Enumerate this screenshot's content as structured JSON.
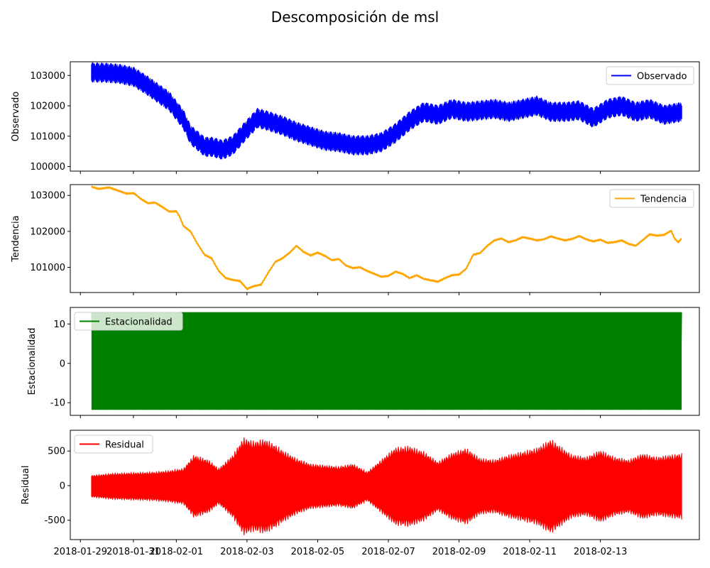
{
  "figure": {
    "title": "Descomposición de msl"
  },
  "x_axis": {
    "tick_labels": [
      "2018-01-29",
      "2018-01-31",
      "2018-02-01",
      "2018-02-03",
      "2018-02-05",
      "2018-02-07",
      "2018-02-09",
      "2018-02-11",
      "2018-02-13"
    ],
    "tick_days": [
      -2.714,
      -1.214,
      0,
      2,
      4,
      6,
      8,
      10,
      12
    ],
    "range_days": [
      -3.0,
      14.8
    ]
  },
  "chart_data": [
    {
      "type": "line",
      "id": "observado",
      "ylabel": "Observado",
      "legend": "Observado",
      "legend_loc": "upper right",
      "color": "#0000ff",
      "ylim": [
        99850,
        103450
      ],
      "yticks": [
        100000,
        101000,
        102000,
        103000
      ],
      "band_amplitude": 320,
      "x_start": -2.4,
      "x_end": 14.3,
      "center_points": [
        [
          -2.4,
          3100
        ],
        [
          -2.0,
          3090
        ],
        [
          -1.6,
          3050
        ],
        [
          -1.2,
          2950
        ],
        [
          -0.8,
          2650
        ],
        [
          -0.5,
          2400
        ],
        [
          -0.2,
          2150
        ],
        [
          0.2,
          1550
        ],
        [
          0.4,
          1050
        ],
        [
          0.8,
          650
        ],
        [
          1.0,
          650
        ],
        [
          1.3,
          550
        ],
        [
          1.6,
          700
        ],
        [
          1.9,
          1100
        ],
        [
          2.1,
          1350
        ],
        [
          2.3,
          1600
        ],
        [
          2.6,
          1500
        ],
        [
          3.0,
          1350
        ],
        [
          3.4,
          1150
        ],
        [
          3.8,
          1000
        ],
        [
          4.2,
          850
        ],
        [
          4.6,
          800
        ],
        [
          5.0,
          700
        ],
        [
          5.4,
          700
        ],
        [
          5.8,
          800
        ],
        [
          6.2,
          1100
        ],
        [
          6.6,
          1500
        ],
        [
          7.0,
          1800
        ],
        [
          7.4,
          1700
        ],
        [
          7.8,
          1900
        ],
        [
          8.2,
          1800
        ],
        [
          8.6,
          1850
        ],
        [
          9.0,
          1900
        ],
        [
          9.4,
          1800
        ],
        [
          9.8,
          1900
        ],
        [
          10.2,
          2000
        ],
        [
          10.6,
          1800
        ],
        [
          11.0,
          1800
        ],
        [
          11.4,
          1850
        ],
        [
          11.8,
          1600
        ],
        [
          12.2,
          1900
        ],
        [
          12.6,
          2000
        ],
        [
          13.0,
          1800
        ],
        [
          13.4,
          1900
        ],
        [
          13.8,
          1700
        ],
        [
          14.3,
          1800
        ]
      ],
      "center_offset": 100000
    },
    {
      "type": "line",
      "id": "tendencia",
      "ylabel": "Tendencia",
      "legend": "Tendencia",
      "legend_loc": "upper right",
      "color": "#ffa500",
      "ylim": [
        100300,
        103300
      ],
      "yticks": [
        101000,
        102000,
        103000
      ],
      "band_amplitude": 0,
      "x_start": -2.4,
      "x_end": 14.3,
      "center_points": [
        [
          -2.4,
          3240
        ],
        [
          -2.2,
          3180
        ],
        [
          -1.9,
          3220
        ],
        [
          -1.7,
          3150
        ],
        [
          -1.4,
          3050
        ],
        [
          -1.2,
          3060
        ],
        [
          -1.0,
          2900
        ],
        [
          -0.8,
          2780
        ],
        [
          -0.6,
          2800
        ],
        [
          -0.4,
          2680
        ],
        [
          -0.2,
          2550
        ],
        [
          0.0,
          2560
        ],
        [
          0.1,
          2400
        ],
        [
          0.2,
          2150
        ],
        [
          0.4,
          2000
        ],
        [
          0.6,
          1650
        ],
        [
          0.8,
          1350
        ],
        [
          1.0,
          1250
        ],
        [
          1.2,
          900
        ],
        [
          1.4,
          700
        ],
        [
          1.6,
          650
        ],
        [
          1.8,
          620
        ],
        [
          2.0,
          400
        ],
        [
          2.2,
          480
        ],
        [
          2.4,
          520
        ],
        [
          2.6,
          850
        ],
        [
          2.8,
          1150
        ],
        [
          3.0,
          1250
        ],
        [
          3.2,
          1400
        ],
        [
          3.4,
          1600
        ],
        [
          3.6,
          1430
        ],
        [
          3.8,
          1330
        ],
        [
          4.0,
          1410
        ],
        [
          4.2,
          1320
        ],
        [
          4.4,
          1200
        ],
        [
          4.6,
          1230
        ],
        [
          4.8,
          1050
        ],
        [
          5.0,
          980
        ],
        [
          5.2,
          1000
        ],
        [
          5.4,
          900
        ],
        [
          5.6,
          820
        ],
        [
          5.8,
          740
        ],
        [
          6.0,
          760
        ],
        [
          6.2,
          880
        ],
        [
          6.4,
          820
        ],
        [
          6.6,
          700
        ],
        [
          6.8,
          780
        ],
        [
          7.0,
          680
        ],
        [
          7.2,
          640
        ],
        [
          7.4,
          600
        ],
        [
          7.6,
          700
        ],
        [
          7.8,
          780
        ],
        [
          8.0,
          800
        ],
        [
          8.2,
          960
        ],
        [
          8.4,
          1350
        ],
        [
          8.6,
          1400
        ],
        [
          8.8,
          1600
        ],
        [
          9.0,
          1750
        ],
        [
          9.2,
          1800
        ],
        [
          9.4,
          1700
        ],
        [
          9.6,
          1750
        ],
        [
          9.8,
          1840
        ],
        [
          10.0,
          1800
        ],
        [
          10.2,
          1750
        ],
        [
          10.4,
          1780
        ],
        [
          10.6,
          1860
        ],
        [
          10.8,
          1800
        ],
        [
          11.0,
          1750
        ],
        [
          11.2,
          1790
        ],
        [
          11.4,
          1870
        ],
        [
          11.6,
          1780
        ],
        [
          11.8,
          1720
        ],
        [
          12.0,
          1770
        ],
        [
          12.2,
          1680
        ],
        [
          12.4,
          1700
        ],
        [
          12.6,
          1750
        ],
        [
          12.8,
          1650
        ],
        [
          13.0,
          1600
        ],
        [
          13.2,
          1760
        ],
        [
          13.4,
          1920
        ],
        [
          13.6,
          1880
        ],
        [
          13.8,
          1900
        ],
        [
          14.0,
          2020
        ],
        [
          14.1,
          1800
        ],
        [
          14.2,
          1700
        ],
        [
          14.3,
          1800
        ]
      ],
      "center_offset": 100000
    },
    {
      "type": "line",
      "id": "estacionalidad",
      "ylabel": "Estacionalidad",
      "legend": "Estacionalidad",
      "legend_loc": "upper left",
      "color": "#008000",
      "ylim": [
        -13.2,
        14.2
      ],
      "yticks": [
        -10,
        0,
        10
      ],
      "band_amplitude": 0,
      "x_start": -2.4,
      "x_end": 14.3,
      "seasonal_max": 13,
      "seasonal_min": -11.8,
      "seasonal_cycles": 167
    },
    {
      "type": "line",
      "id": "residual",
      "ylabel": "Residual",
      "legend": "Residual",
      "legend_loc": "upper left",
      "color": "#ff0000",
      "ylim": [
        -780,
        800
      ],
      "yticks": [
        -500,
        0,
        500
      ],
      "x_start": -2.4,
      "x_end": 14.3,
      "envelope_points": [
        [
          -2.4,
          150
        ],
        [
          -1.8,
          180
        ],
        [
          -1.2,
          190
        ],
        [
          -0.6,
          200
        ],
        [
          -0.2,
          220
        ],
        [
          0.2,
          250
        ],
        [
          0.5,
          450
        ],
        [
          0.9,
          380
        ],
        [
          1.2,
          250
        ],
        [
          1.6,
          450
        ],
        [
          1.9,
          700
        ],
        [
          2.2,
          650
        ],
        [
          2.5,
          680
        ],
        [
          2.8,
          600
        ],
        [
          3.0,
          520
        ],
        [
          3.4,
          400
        ],
        [
          3.8,
          320
        ],
        [
          4.2,
          300
        ],
        [
          4.6,
          280
        ],
        [
          5.0,
          320
        ],
        [
          5.4,
          200
        ],
        [
          5.8,
          380
        ],
        [
          6.2,
          560
        ],
        [
          6.6,
          580
        ],
        [
          7.0,
          500
        ],
        [
          7.4,
          350
        ],
        [
          7.8,
          480
        ],
        [
          8.2,
          550
        ],
        [
          8.6,
          400
        ],
        [
          9.0,
          380
        ],
        [
          9.4,
          450
        ],
        [
          9.8,
          500
        ],
        [
          10.2,
          550
        ],
        [
          10.6,
          680
        ],
        [
          10.8,
          600
        ],
        [
          11.2,
          450
        ],
        [
          11.6,
          420
        ],
        [
          12.0,
          520
        ],
        [
          12.4,
          420
        ],
        [
          12.8,
          380
        ],
        [
          13.2,
          470
        ],
        [
          13.6,
          420
        ],
        [
          14.0,
          450
        ],
        [
          14.3,
          470
        ]
      ]
    }
  ]
}
